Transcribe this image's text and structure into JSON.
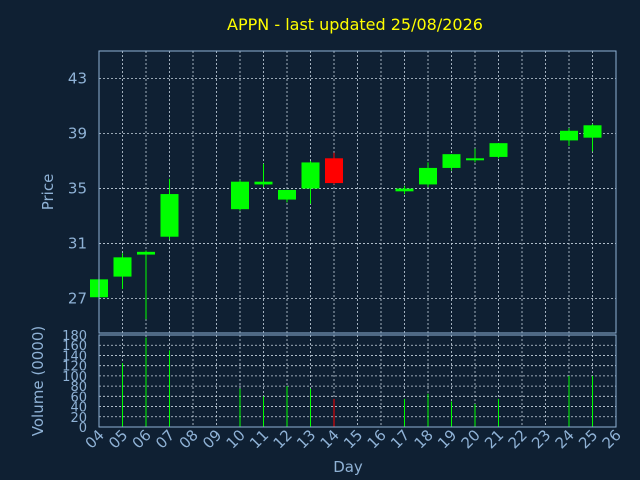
{
  "chart_data": {
    "type": "candlestick",
    "title": "APPN - last updated 25/08/2026",
    "price_panel": {
      "ylabel": "Price",
      "ylim": [
        24.5,
        45
      ],
      "yticks": [
        27,
        31,
        35,
        39,
        43
      ],
      "grid": true
    },
    "volume_panel": {
      "ylabel": "Volume (0000)",
      "ylim": [
        0,
        180
      ],
      "yticks": [
        0,
        20,
        40,
        60,
        80,
        100,
        120,
        140,
        160,
        180
      ],
      "grid": true
    },
    "xlabel": "Day",
    "x_categories": [
      "04",
      "05",
      "06",
      "07",
      "08",
      "09",
      "10",
      "11",
      "12",
      "13",
      "14",
      "15",
      "16",
      "17",
      "18",
      "19",
      "20",
      "21",
      "22",
      "23",
      "24",
      "25",
      "26"
    ],
    "up_color": "#00ff00",
    "down_color": "#ff0000",
    "candles": [
      {
        "day": "04",
        "open": 27.1,
        "high": 28.4,
        "low": 27.0,
        "close": 28.4,
        "volume": 0
      },
      {
        "day": "05",
        "open": 28.6,
        "high": 30.3,
        "low": 27.7,
        "close": 30.0,
        "volume": 125
      },
      {
        "day": "06",
        "open": 30.2,
        "high": 30.5,
        "low": 25.5,
        "close": 30.4,
        "volume": 175
      },
      {
        "day": "07",
        "open": 31.5,
        "high": 35.7,
        "low": 31.3,
        "close": 34.6,
        "volume": 150
      },
      {
        "day": "10",
        "open": 33.5,
        "high": 35.6,
        "low": 33.4,
        "close": 35.5,
        "volume": 75
      },
      {
        "day": "11",
        "open": 35.3,
        "high": 36.8,
        "low": 35.1,
        "close": 35.5,
        "volume": 60
      },
      {
        "day": "12",
        "open": 34.2,
        "high": 34.9,
        "low": 34.0,
        "close": 34.9,
        "volume": 80
      },
      {
        "day": "13",
        "open": 35.0,
        "high": 37.0,
        "low": 33.9,
        "close": 36.9,
        "volume": 75
      },
      {
        "day": "14",
        "open": 37.2,
        "high": 37.6,
        "low": 35.3,
        "close": 35.4,
        "volume": 55
      },
      {
        "day": "17",
        "open": 34.8,
        "high": 35.2,
        "low": 34.6,
        "close": 35.0,
        "volume": 55
      },
      {
        "day": "18",
        "open": 35.3,
        "high": 36.9,
        "low": 35.1,
        "close": 36.5,
        "volume": 65
      },
      {
        "day": "19",
        "open": 36.5,
        "high": 37.5,
        "low": 36.3,
        "close": 37.5,
        "volume": 50
      },
      {
        "day": "20",
        "open": 37.1,
        "high": 37.9,
        "low": 36.9,
        "close": 37.2,
        "volume": 45
      },
      {
        "day": "21",
        "open": 37.3,
        "high": 38.3,
        "low": 37.2,
        "close": 38.3,
        "volume": 55
      },
      {
        "day": "24",
        "open": 38.5,
        "high": 39.4,
        "low": 38.1,
        "close": 39.2,
        "volume": 100
      },
      {
        "day": "25",
        "open": 38.7,
        "high": 39.7,
        "low": 37.7,
        "close": 39.6,
        "volume": 100
      }
    ]
  }
}
